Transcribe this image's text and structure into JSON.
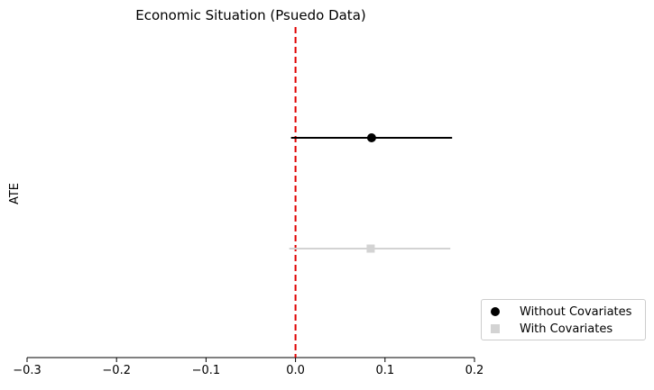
{
  "chart_data": {
    "type": "scatter",
    "title": "Economic Situation (Psuedo Data)",
    "xlabel": "",
    "ylabel": "ATE",
    "xlim": [
      -0.3,
      0.2
    ],
    "xticks": [
      -0.3,
      -0.2,
      -0.1,
      0.0,
      0.1,
      0.2
    ],
    "xtick_labels": [
      "−0.3",
      "−0.2",
      "−0.1",
      "0.0",
      "0.1",
      "0.2"
    ],
    "reference_line": {
      "x": 0,
      "style": "dashed",
      "color": "#e00000"
    },
    "grid": false,
    "legend_position": "lower-right outside",
    "series": [
      {
        "name": "Without Covariates",
        "marker": "circle",
        "color": "#000000",
        "estimate": 0.085,
        "ci": [
          -0.005,
          0.175
        ],
        "row": 1
      },
      {
        "name": "With Covariates",
        "marker": "square",
        "color": "#d3d3d3",
        "estimate": 0.084,
        "ci": [
          -0.007,
          0.173
        ],
        "row": 2
      }
    ]
  }
}
